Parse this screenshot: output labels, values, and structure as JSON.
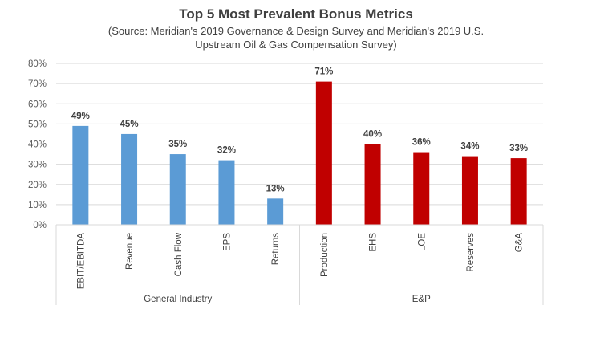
{
  "chart_data": {
    "type": "bar",
    "title": "Top 5 Most Prevalent Bonus Metrics",
    "subtitle_lines": [
      "(Source: Meridian's 2019 Governance & Design Survey and Meridian's 2019 U.S.",
      "Upstream Oil & Gas Compensation Survey)"
    ],
    "xlabel": "",
    "ylabel": "",
    "ylim": [
      0,
      80
    ],
    "y_ticks": [
      "0%",
      "10%",
      "20%",
      "30%",
      "40%",
      "50%",
      "60%",
      "70%",
      "80%"
    ],
    "grid": true,
    "legend": "none",
    "groups": [
      {
        "name": "General Industry",
        "color": "#5B9BD5",
        "categories": [
          "EBIT/EBITDA",
          "Revenue",
          "Cash Flow",
          "EPS",
          "Returns"
        ],
        "values": [
          49,
          45,
          35,
          32,
          13
        ],
        "labels": [
          "49%",
          "45%",
          "35%",
          "32%",
          "13%"
        ]
      },
      {
        "name": "E&P",
        "color": "#C00000",
        "categories": [
          "Production",
          "EHS",
          "LOE",
          "Reserves",
          "G&A"
        ],
        "values": [
          71,
          40,
          36,
          34,
          33
        ],
        "labels": [
          "71%",
          "40%",
          "36%",
          "34%",
          "33%"
        ]
      }
    ]
  }
}
